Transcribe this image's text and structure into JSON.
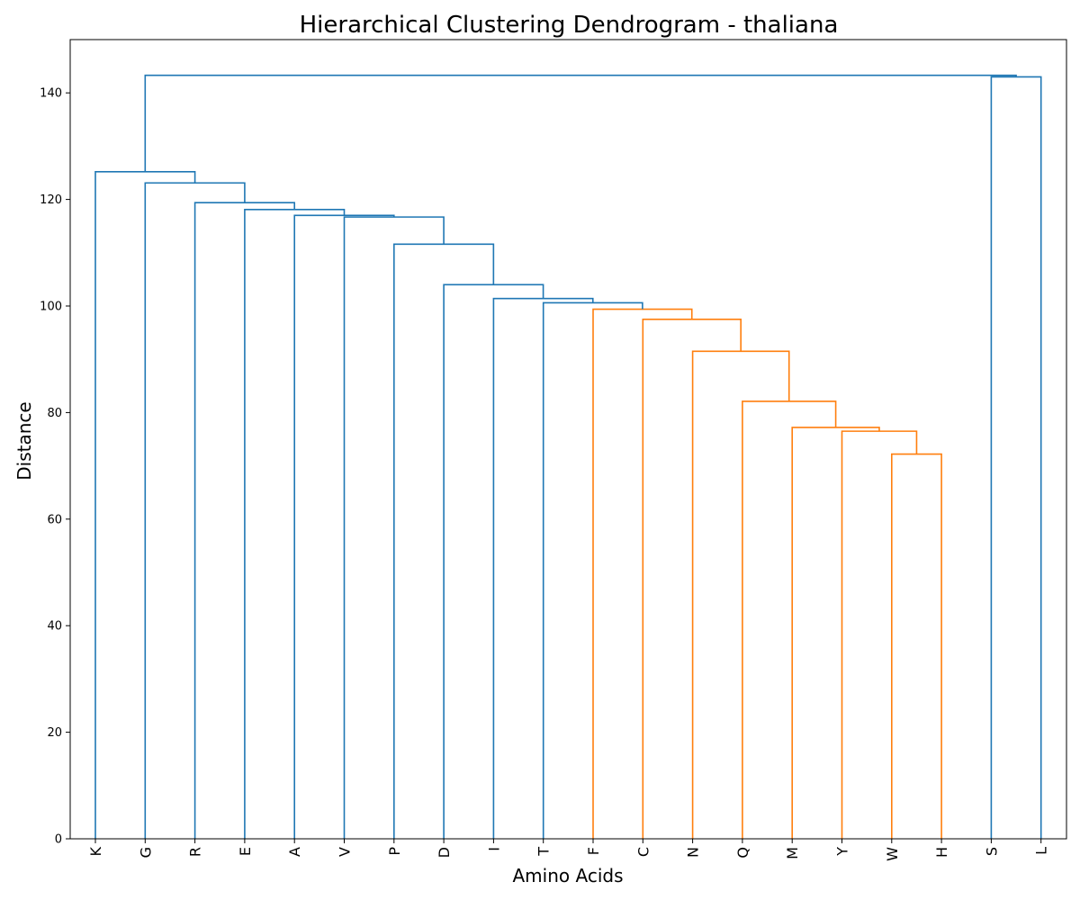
{
  "chart_data": {
    "type": "dendrogram",
    "title": "Hierarchical Clustering Dendrogram - thaliana",
    "xlabel": "Amino Acids",
    "ylabel": "Distance",
    "ylim": [
      0,
      150
    ],
    "yticks": [
      0,
      20,
      40,
      60,
      80,
      100,
      120,
      140
    ],
    "leaves": [
      "K",
      "G",
      "R",
      "E",
      "A",
      "V",
      "P",
      "D",
      "I",
      "T",
      "F",
      "C",
      "N",
      "Q",
      "M",
      "Y",
      "W",
      "H",
      "S",
      "L"
    ],
    "colors": {
      "above_threshold": "#1f77b4",
      "cluster": "#ff7f0e"
    },
    "merges": [
      {
        "left": "W",
        "right": "H",
        "height": 72.2,
        "color": "cluster"
      },
      {
        "left": "Y",
        "right": "(W,H)",
        "height": 76.5,
        "color": "cluster"
      },
      {
        "left": "M",
        "right": "(Y,W,H)",
        "height": 77.2,
        "color": "cluster"
      },
      {
        "left": "Q",
        "right": "(M,Y,W,H)",
        "height": 82.1,
        "color": "cluster"
      },
      {
        "left": "N",
        "right": "(Q..H)",
        "height": 91.5,
        "color": "cluster"
      },
      {
        "left": "C",
        "right": "(N..H)",
        "height": 97.5,
        "color": "cluster"
      },
      {
        "left": "F",
        "right": "(C..H)",
        "height": 99.4,
        "color": "cluster"
      },
      {
        "left": "T",
        "right": "(F..H)",
        "height": 100.6,
        "color": "above_threshold"
      },
      {
        "left": "I",
        "right": "(T..H)",
        "height": 101.4,
        "color": "above_threshold"
      },
      {
        "left": "D",
        "right": "(I..H)",
        "height": 104.0,
        "color": "above_threshold"
      },
      {
        "left": "P",
        "right": "(D..H)",
        "height": 111.6,
        "color": "above_threshold"
      },
      {
        "left": "V",
        "right": "(P..H)",
        "height": 116.7,
        "color": "above_threshold"
      },
      {
        "left": "A",
        "right": "(V..H)",
        "height": 117.0,
        "color": "above_threshold"
      },
      {
        "left": "E",
        "right": "(A..H)",
        "height": 118.1,
        "color": "above_threshold"
      },
      {
        "left": "R",
        "right": "(E..H)",
        "height": 119.4,
        "color": "above_threshold"
      },
      {
        "left": "G",
        "right": "(R..H)",
        "height": 123.1,
        "color": "above_threshold"
      },
      {
        "left": "K",
        "right": "(G..H)",
        "height": 125.2,
        "color": "above_threshold"
      },
      {
        "left": "S",
        "right": "L",
        "height": 143.0,
        "color": "above_threshold"
      },
      {
        "left": "(K..H)",
        "right": "(S,L)",
        "height": 143.3,
        "color": "above_threshold"
      }
    ]
  }
}
